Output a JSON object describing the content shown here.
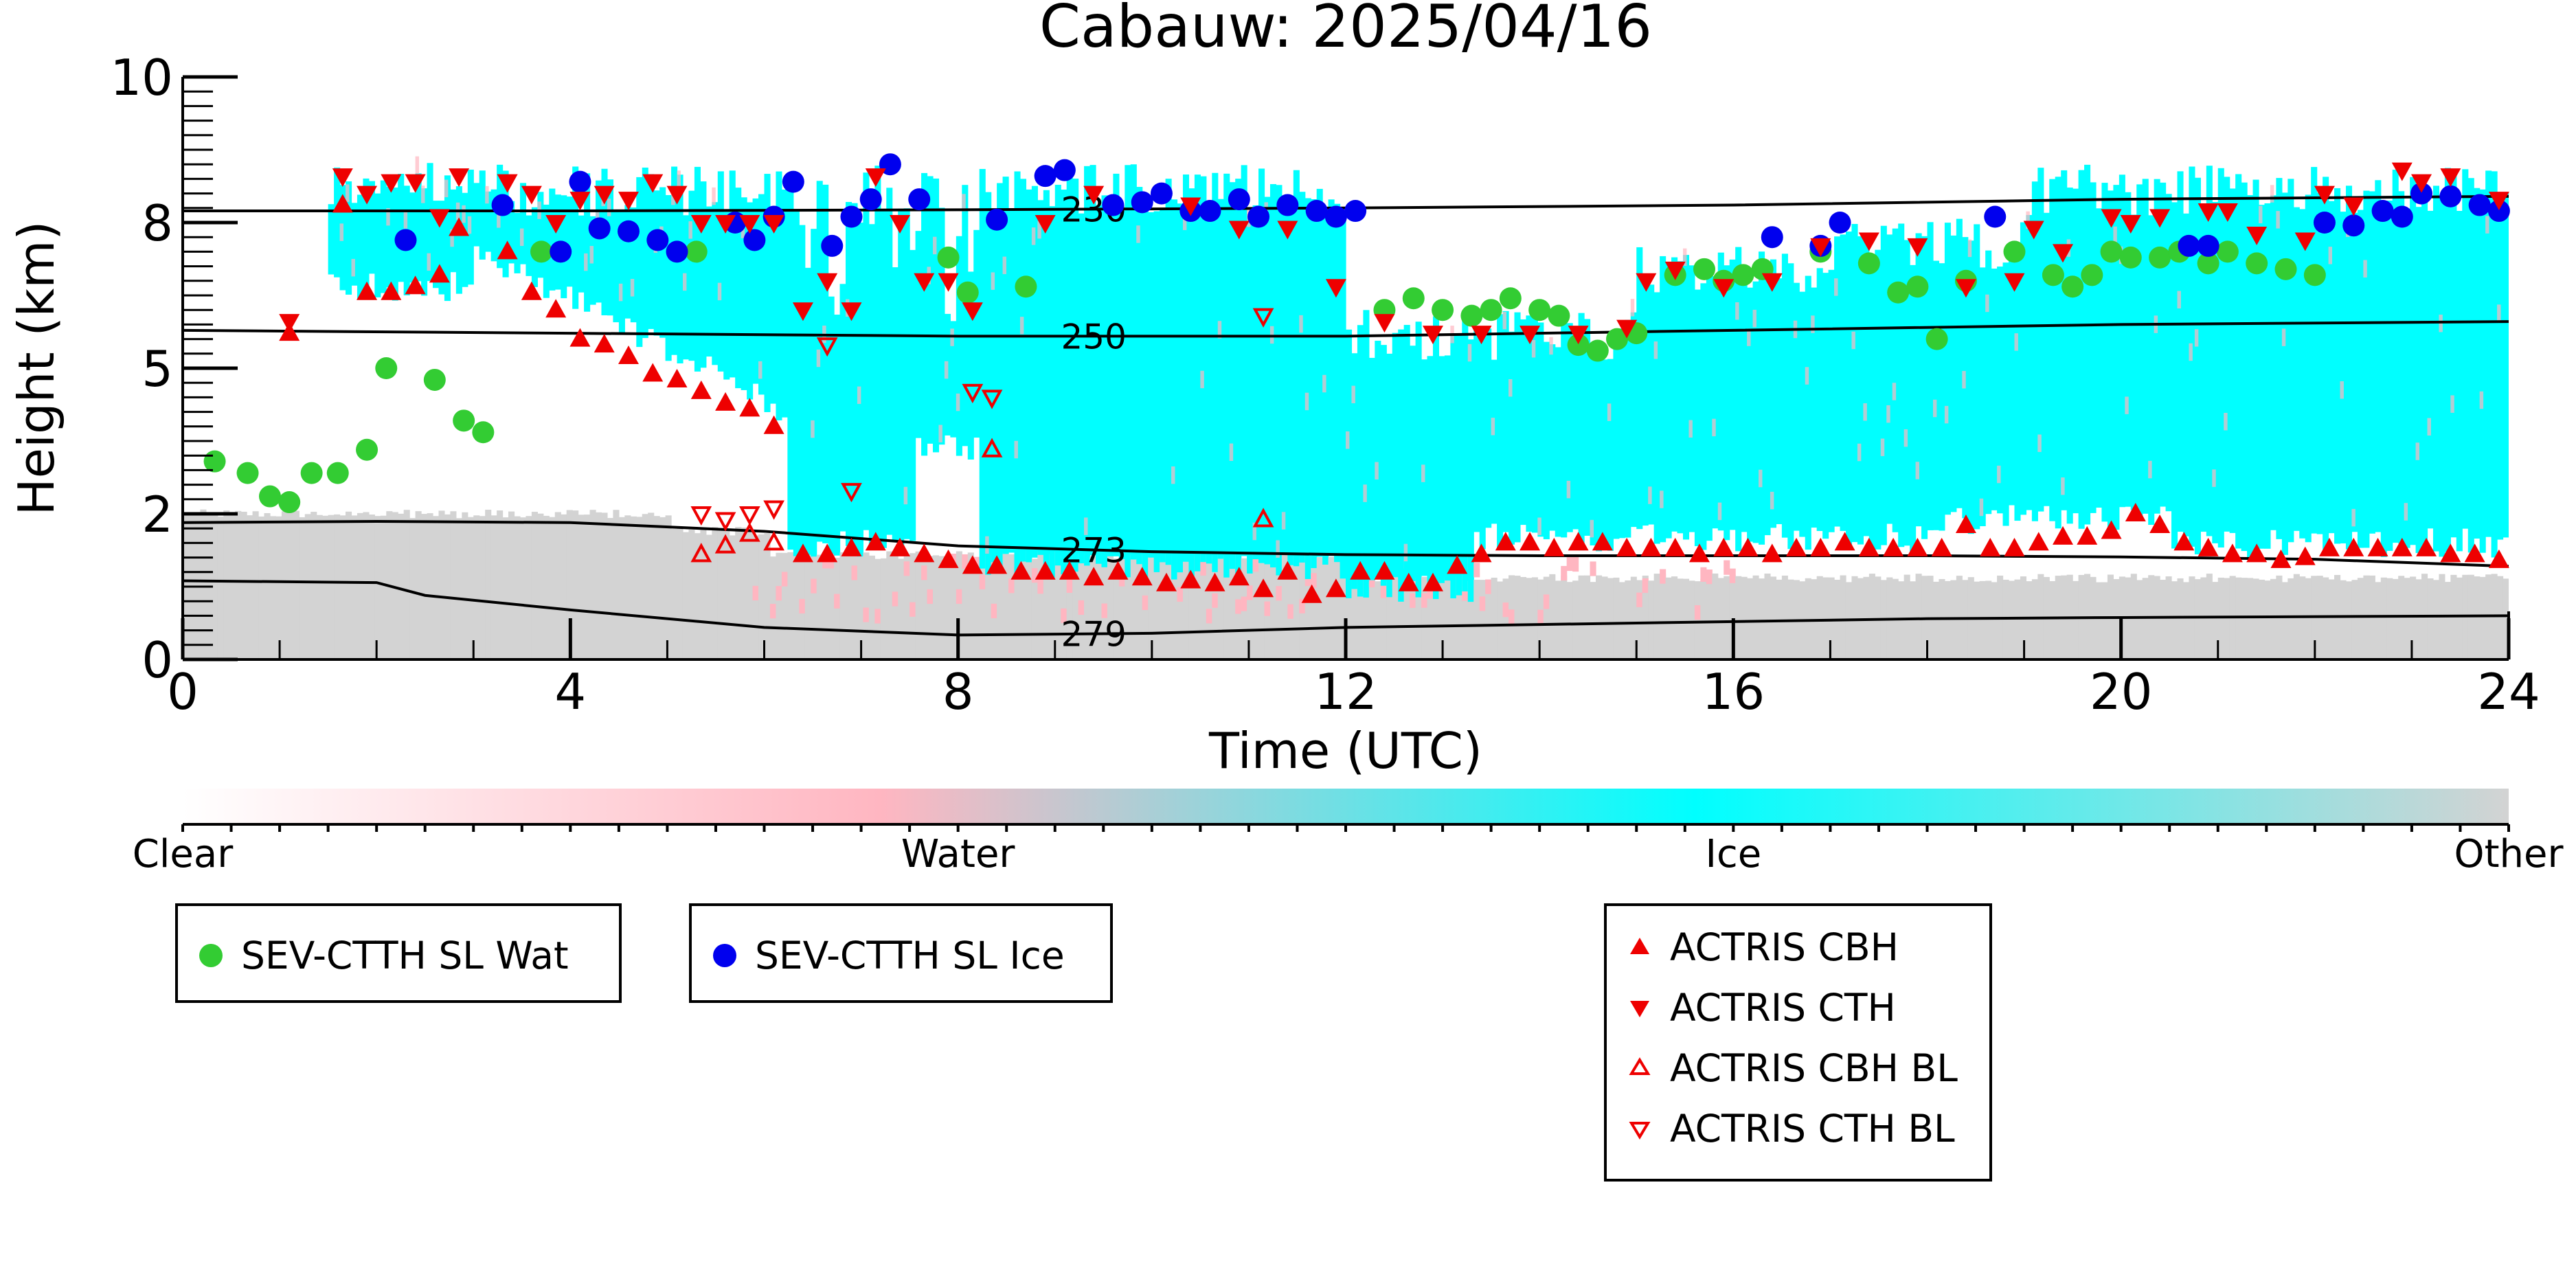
{
  "chart_data": {
    "type": "scatter",
    "title": "Cabauw: 2025/04/16",
    "xlabel": "Time (UTC)",
    "ylabel": "Height (km)",
    "xlim": [
      0,
      24
    ],
    "ylim": [
      0,
      10
    ],
    "x_ticks": [
      "0",
      "4",
      "8",
      "12",
      "16",
      "20",
      "24"
    ],
    "y_ticks": [
      "0",
      "2",
      "5",
      "8",
      "10"
    ],
    "y_tick_values": [
      0,
      2.5,
      5,
      7.5,
      10
    ],
    "background_classes": {
      "labels": [
        "Clear",
        "Water",
        "Ice",
        "Other"
      ],
      "colors": [
        "#ffffff",
        "#ffb6c1",
        "#00ffff",
        "#d3d3d3"
      ]
    },
    "isotherms": [
      {
        "label": "230",
        "x": [
          0,
          4,
          8,
          12,
          16,
          20,
          24
        ],
        "y": [
          7.7,
          7.7,
          7.72,
          7.75,
          7.8,
          7.9,
          7.95
        ]
      },
      {
        "label": "250",
        "x": [
          0,
          4,
          8,
          12,
          16,
          20,
          24
        ],
        "y": [
          5.65,
          5.6,
          5.55,
          5.55,
          5.65,
          5.75,
          5.8
        ]
      },
      {
        "label": "273",
        "x": [
          0,
          2,
          4,
          6,
          8,
          10,
          12,
          14,
          16,
          18,
          20,
          22,
          24
        ],
        "y": [
          2.35,
          2.37,
          2.35,
          2.2,
          1.95,
          1.85,
          1.8,
          1.78,
          1.78,
          1.78,
          1.76,
          1.72,
          1.6
        ]
      },
      {
        "label": "279",
        "x": [
          0,
          2,
          2.5,
          4,
          6,
          8,
          10,
          12,
          14,
          16,
          18,
          20,
          24
        ],
        "y": [
          1.35,
          1.32,
          1.1,
          0.85,
          0.55,
          0.42,
          0.45,
          0.55,
          0.6,
          0.65,
          0.7,
          0.72,
          0.75
        ]
      }
    ],
    "series": [
      {
        "name": "SEV-CTTH SL Wat",
        "marker": "circle",
        "color": "#33cc33",
        "x": [
          0.33,
          0.67,
          0.9,
          1.1,
          1.33,
          1.6,
          1.9,
          2.1,
          2.6,
          2.9,
          3.1,
          3.7,
          5.3,
          7.9,
          8.1,
          8.7,
          12.4,
          12.7,
          13.0,
          13.3,
          13.5,
          13.7,
          14.0,
          14.2,
          14.4,
          14.6,
          14.8,
          15.0,
          15.4,
          15.7,
          15.9,
          16.1,
          16.3,
          16.9,
          17.4,
          17.7,
          17.9,
          18.1,
          18.4,
          18.9,
          19.3,
          19.5,
          19.7,
          19.9,
          20.1,
          20.4,
          20.6,
          20.9,
          21.1,
          21.4,
          21.7,
          22.0
        ],
        "y": [
          3.4,
          3.2,
          2.8,
          2.7,
          3.2,
          3.2,
          3.6,
          5.0,
          4.8,
          4.1,
          3.9,
          7.0,
          7.0,
          6.9,
          6.3,
          6.4,
          6.0,
          6.2,
          6.0,
          5.9,
          6.0,
          6.2,
          6.0,
          5.9,
          5.4,
          5.3,
          5.5,
          5.6,
          6.6,
          6.7,
          6.5,
          6.6,
          6.7,
          7.0,
          6.8,
          6.3,
          6.4,
          5.5,
          6.5,
          7.0,
          6.6,
          6.4,
          6.6,
          7.0,
          6.9,
          6.9,
          7.0,
          6.8,
          7.0,
          6.8,
          6.7,
          6.6
        ]
      },
      {
        "name": "SEV-CTTH SL Ice",
        "marker": "circle",
        "color": "#0000ee",
        "x": [
          2.3,
          3.3,
          3.9,
          4.1,
          4.3,
          4.6,
          4.9,
          5.1,
          5.7,
          5.9,
          6.1,
          6.3,
          6.7,
          6.9,
          7.1,
          7.3,
          7.6,
          8.4,
          8.9,
          9.1,
          9.6,
          9.9,
          10.1,
          10.4,
          10.6,
          10.9,
          11.1,
          11.4,
          11.7,
          11.9,
          12.1,
          16.4,
          16.9,
          17.1,
          18.7,
          20.7,
          20.9,
          22.1,
          22.4,
          22.7,
          22.9,
          23.1,
          23.4,
          23.7,
          23.9
        ],
        "y": [
          7.2,
          7.8,
          7.0,
          8.2,
          7.4,
          7.35,
          7.2,
          7.0,
          7.5,
          7.2,
          7.6,
          8.2,
          7.1,
          7.6,
          7.9,
          8.5,
          7.9,
          7.55,
          8.3,
          8.4,
          7.8,
          7.85,
          8.0,
          7.7,
          7.7,
          7.9,
          7.6,
          7.8,
          7.7,
          7.6,
          7.7,
          7.25,
          7.1,
          7.5,
          7.6,
          7.1,
          7.1,
          7.5,
          7.45,
          7.7,
          7.6,
          8.0,
          7.95,
          7.8,
          7.7
        ]
      },
      {
        "name": "ACTRIS CBH",
        "marker": "triangle-up",
        "color": "#ee0000",
        "x": [
          1.1,
          1.65,
          1.9,
          2.15,
          2.4,
          2.65,
          2.85,
          3.35,
          3.6,
          3.85,
          4.1,
          4.35,
          4.6,
          4.85,
          5.1,
          5.35,
          5.6,
          5.85,
          6.1,
          6.4,
          6.65,
          6.9,
          7.15,
          7.4,
          7.65,
          7.9,
          8.15,
          8.4,
          8.65,
          8.9,
          9.15,
          9.4,
          9.65,
          9.9,
          10.15,
          10.4,
          10.65,
          10.9,
          11.15,
          11.4,
          11.65,
          11.9,
          12.15,
          12.4,
          12.65,
          12.9,
          13.15,
          13.4,
          13.65,
          13.9,
          14.15,
          14.4,
          14.65,
          14.9,
          15.15,
          15.4,
          15.65,
          15.9,
          16.15,
          16.4,
          16.65,
          16.9,
          17.15,
          17.4,
          17.65,
          17.9,
          18.15,
          18.4,
          18.65,
          18.9,
          19.15,
          19.4,
          19.65,
          19.9,
          20.15,
          20.4,
          20.65,
          20.9,
          21.15,
          21.4,
          21.65,
          21.9,
          22.15,
          22.4,
          22.65,
          22.9,
          23.15,
          23.4,
          23.65,
          23.9
        ],
        "y": [
          5.6,
          7.8,
          6.3,
          6.3,
          6.4,
          6.6,
          7.4,
          7.0,
          6.3,
          6.0,
          5.5,
          5.4,
          5.2,
          4.9,
          4.8,
          4.6,
          4.4,
          4.3,
          4.0,
          1.8,
          1.8,
          1.9,
          2.0,
          1.9,
          1.8,
          1.7,
          1.6,
          1.6,
          1.5,
          1.5,
          1.5,
          1.4,
          1.5,
          1.4,
          1.3,
          1.35,
          1.3,
          1.4,
          1.2,
          1.5,
          1.1,
          1.2,
          1.5,
          1.5,
          1.3,
          1.3,
          1.6,
          1.8,
          2.0,
          2.0,
          1.9,
          2.0,
          2.0,
          1.9,
          1.9,
          1.9,
          1.8,
          1.9,
          1.9,
          1.8,
          1.9,
          1.9,
          2.0,
          1.9,
          1.9,
          1.9,
          1.9,
          2.3,
          1.9,
          1.9,
          2.0,
          2.1,
          2.1,
          2.2,
          2.5,
          2.3,
          2.0,
          1.9,
          1.8,
          1.8,
          1.7,
          1.75,
          1.9,
          1.9,
          1.9,
          1.9,
          1.9,
          1.8,
          1.8,
          1.7
        ]
      },
      {
        "name": "ACTRIS CTH",
        "marker": "triangle-down",
        "color": "#ee0000",
        "x": [
          1.1,
          1.65,
          1.9,
          2.15,
          2.4,
          2.65,
          2.85,
          3.35,
          3.6,
          3.85,
          4.1,
          4.35,
          4.6,
          4.85,
          5.1,
          5.35,
          5.6,
          5.85,
          6.1,
          6.4,
          6.65,
          6.9,
          7.15,
          7.4,
          7.65,
          7.9,
          8.15,
          8.9,
          9.4,
          10.4,
          10.9,
          11.4,
          11.9,
          12.4,
          12.9,
          13.4,
          13.9,
          14.4,
          14.9,
          15.1,
          15.4,
          15.9,
          16.4,
          16.9,
          17.4,
          17.9,
          18.4,
          18.9,
          19.1,
          19.4,
          19.9,
          20.1,
          20.4,
          20.9,
          21.1,
          21.4,
          21.9,
          22.1,
          22.4,
          22.9,
          23.1,
          23.4,
          23.9
        ],
        "y": [
          5.8,
          8.3,
          8.0,
          8.2,
          8.2,
          7.6,
          8.3,
          8.2,
          8.0,
          7.5,
          7.9,
          8.0,
          7.9,
          8.2,
          8.0,
          7.5,
          7.5,
          7.5,
          7.5,
          6.0,
          6.5,
          6.0,
          8.3,
          7.5,
          6.5,
          6.5,
          6.0,
          7.5,
          8.0,
          7.8,
          7.4,
          7.4,
          6.4,
          5.8,
          5.6,
          5.6,
          5.6,
          5.6,
          5.7,
          6.5,
          6.7,
          6.4,
          6.5,
          7.1,
          7.2,
          7.1,
          6.4,
          6.5,
          7.4,
          7.0,
          7.6,
          7.5,
          7.6,
          7.7,
          7.7,
          7.3,
          7.2,
          8.0,
          7.8,
          8.4,
          8.2,
          8.3,
          7.9
        ]
      },
      {
        "name": "ACTRIS CBH BL",
        "marker": "triangle-up-open",
        "color": "#ee0000",
        "x": [
          5.35,
          5.6,
          5.85,
          6.1,
          8.35,
          11.15
        ],
        "y": [
          1.8,
          1.95,
          2.15,
          2.0,
          3.6,
          2.4
        ]
      },
      {
        "name": "ACTRIS CTH BL",
        "marker": "triangle-down-open",
        "color": "#ee0000",
        "x": [
          5.35,
          5.6,
          5.85,
          6.1,
          6.65,
          6.9,
          8.15,
          8.35,
          11.15
        ],
        "y": [
          2.5,
          2.4,
          2.5,
          2.6,
          5.4,
          2.9,
          4.6,
          4.5,
          5.9
        ]
      }
    ],
    "legend": [
      {
        "label": "SEV-CTTH SL Wat",
        "marker": "circle",
        "color": "#33cc33"
      },
      {
        "label": "SEV-CTTH SL Ice",
        "marker": "circle",
        "color": "#0000ee"
      },
      {
        "label": "ACTRIS CBH",
        "marker": "triangle-up",
        "color": "#ee0000"
      },
      {
        "label": "ACTRIS CTH",
        "marker": "triangle-down",
        "color": "#ee0000"
      },
      {
        "label": "ACTRIS CBH BL",
        "marker": "triangle-up-open",
        "color": "#ee0000"
      },
      {
        "label": "ACTRIS CTH BL",
        "marker": "triangle-down-open",
        "color": "#ee0000"
      }
    ],
    "grid": false
  }
}
